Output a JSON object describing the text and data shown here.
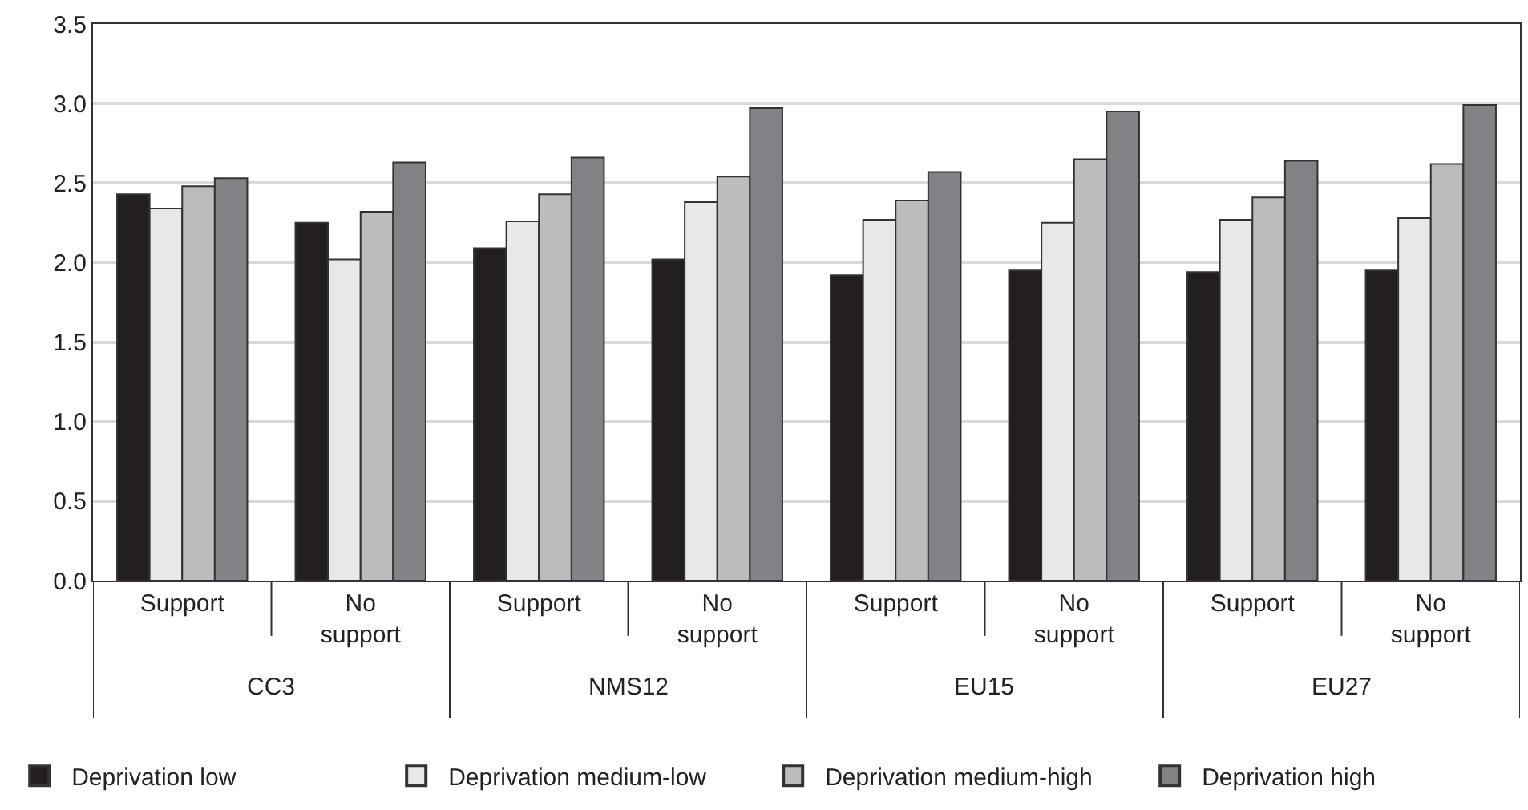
{
  "chart_data": {
    "type": "bar",
    "categories": [
      "Support",
      "No support",
      "Support",
      "No support",
      "Support",
      "No support",
      "Support",
      "No support"
    ],
    "annotations": [
      "CC3",
      "NMS12",
      "EU15",
      "EU27"
    ],
    "series": [
      {
        "name": "Deprivation low",
        "color": "#231f20",
        "values": [
          2.43,
          2.25,
          2.09,
          2.02,
          1.92,
          1.95,
          1.94,
          1.95
        ]
      },
      {
        "name": "Deprivation medium-low",
        "color": "#e8e8e8",
        "values": [
          2.34,
          2.02,
          2.26,
          2.38,
          2.27,
          2.25,
          2.27,
          2.28
        ]
      },
      {
        "name": "Deprivation medium-high",
        "color": "#bbbcbe",
        "values": [
          2.48,
          2.32,
          2.43,
          2.54,
          2.39,
          2.65,
          2.41,
          2.62
        ]
      },
      {
        "name": "Deprivation high",
        "color": "#818286",
        "values": [
          2.53,
          2.63,
          2.66,
          2.97,
          2.57,
          2.95,
          2.64,
          2.99
        ]
      }
    ],
    "ylim": [
      0,
      3.5
    ],
    "yticks": [
      {
        "value": 0,
        "label": "0.0"
      },
      {
        "value": 0.5,
        "label": "0.5"
      },
      {
        "value": 1,
        "label": "1.0"
      },
      {
        "value": 1.5,
        "label": "1.5"
      },
      {
        "value": 2,
        "label": "2.0"
      },
      {
        "value": 2.5,
        "label": "2.5"
      },
      {
        "value": 3,
        "label": "3.0"
      },
      {
        "value": 3.5,
        "label": "3.5"
      }
    ],
    "grid": "y",
    "legend": "bottom"
  }
}
